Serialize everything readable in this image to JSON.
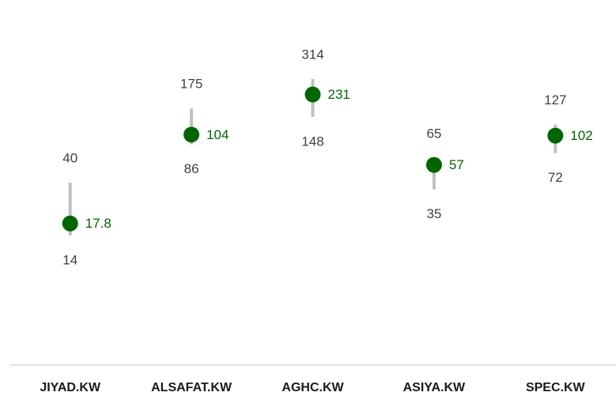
{
  "chart_data": {
    "type": "range",
    "categories": [
      "JIYAD.KW",
      "ALSAFAT.KW",
      "AGHC.KW",
      "ASIYA.KW",
      "SPEC.KW"
    ],
    "values": [
      17.8,
      104,
      231,
      57,
      102
    ],
    "high": [
      40,
      175,
      314,
      65,
      127
    ],
    "low": [
      14,
      86,
      148,
      35,
      72
    ],
    "log_scale": true,
    "color": "#006600",
    "range_color": "#c0c0c0"
  }
}
